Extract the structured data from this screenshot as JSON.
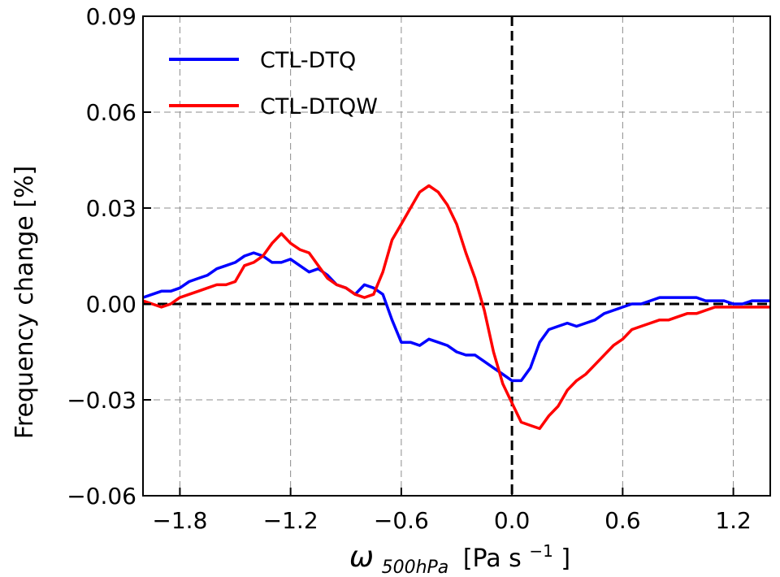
{
  "chart_data": {
    "type": "line",
    "xlabel": "ω500hPa [Pa s−1]",
    "xlabel_parts": {
      "symbol": "ω",
      "subscript": "500hPa",
      "unit_prefix": "[Pa s",
      "unit_exponent": "−1",
      "unit_suffix": "]"
    },
    "ylabel": "Frequency change [%]",
    "xlim": [
      -2.0,
      1.4
    ],
    "ylim": [
      -0.06,
      0.09
    ],
    "xticks": [
      -1.8,
      -1.2,
      -0.6,
      0.0,
      0.6,
      1.2
    ],
    "xtick_labels": [
      "−1.8",
      "−1.2",
      "−0.6",
      "0.0",
      "0.6",
      "1.2"
    ],
    "yticks": [
      -0.06,
      -0.03,
      0.0,
      0.03,
      0.06,
      0.09
    ],
    "ytick_labels": [
      "−0.06",
      "−0.03",
      "0.00",
      "0.03",
      "0.06",
      "0.09"
    ],
    "grid": true,
    "grid_style": "dashed",
    "zero_lines": true,
    "legend_position": "top-left",
    "series": [
      {
        "name": "CTL-DTQ",
        "color": "#0000ff",
        "x": [
          -2.0,
          -1.95,
          -1.9,
          -1.85,
          -1.8,
          -1.75,
          -1.7,
          -1.65,
          -1.6,
          -1.55,
          -1.5,
          -1.45,
          -1.4,
          -1.35,
          -1.3,
          -1.25,
          -1.2,
          -1.15,
          -1.1,
          -1.05,
          -1.0,
          -0.95,
          -0.9,
          -0.85,
          -0.8,
          -0.75,
          -0.7,
          -0.65,
          -0.6,
          -0.55,
          -0.5,
          -0.45,
          -0.4,
          -0.35,
          -0.3,
          -0.25,
          -0.2,
          -0.15,
          -0.1,
          -0.05,
          0.0,
          0.05,
          0.1,
          0.15,
          0.2,
          0.25,
          0.3,
          0.35,
          0.4,
          0.45,
          0.5,
          0.55,
          0.6,
          0.65,
          0.7,
          0.75,
          0.8,
          0.85,
          0.9,
          0.95,
          1.0,
          1.05,
          1.1,
          1.15,
          1.2,
          1.25,
          1.3,
          1.35,
          1.4
        ],
        "y": [
          0.002,
          0.003,
          0.004,
          0.004,
          0.005,
          0.007,
          0.008,
          0.009,
          0.011,
          0.012,
          0.013,
          0.015,
          0.016,
          0.015,
          0.013,
          0.013,
          0.014,
          0.012,
          0.01,
          0.011,
          0.009,
          0.006,
          0.005,
          0.003,
          0.006,
          0.005,
          0.003,
          -0.005,
          -0.012,
          -0.012,
          -0.013,
          -0.011,
          -0.012,
          -0.013,
          -0.015,
          -0.016,
          -0.016,
          -0.018,
          -0.02,
          -0.022,
          -0.024,
          -0.024,
          -0.02,
          -0.012,
          -0.008,
          -0.007,
          -0.006,
          -0.007,
          -0.006,
          -0.005,
          -0.003,
          -0.002,
          -0.001,
          0.0,
          0.0,
          0.001,
          0.002,
          0.002,
          0.002,
          0.002,
          0.002,
          0.001,
          0.001,
          0.001,
          0.0,
          0.0,
          0.001,
          0.001,
          0.001
        ]
      },
      {
        "name": "CTL-DTQW",
        "color": "#ff0000",
        "x": [
          -2.0,
          -1.95,
          -1.9,
          -1.85,
          -1.8,
          -1.75,
          -1.7,
          -1.65,
          -1.6,
          -1.55,
          -1.5,
          -1.45,
          -1.4,
          -1.35,
          -1.3,
          -1.25,
          -1.2,
          -1.15,
          -1.1,
          -1.05,
          -1.0,
          -0.95,
          -0.9,
          -0.85,
          -0.8,
          -0.75,
          -0.7,
          -0.65,
          -0.6,
          -0.55,
          -0.5,
          -0.45,
          -0.4,
          -0.35,
          -0.3,
          -0.25,
          -0.2,
          -0.15,
          -0.1,
          -0.05,
          0.0,
          0.05,
          0.1,
          0.15,
          0.2,
          0.25,
          0.3,
          0.35,
          0.4,
          0.45,
          0.5,
          0.55,
          0.6,
          0.65,
          0.7,
          0.75,
          0.8,
          0.85,
          0.9,
          0.95,
          1.0,
          1.05,
          1.1,
          1.15,
          1.2,
          1.25,
          1.3,
          1.35,
          1.4
        ],
        "y": [
          0.001,
          0.0,
          -0.001,
          0.0,
          0.002,
          0.003,
          0.004,
          0.005,
          0.006,
          0.006,
          0.007,
          0.012,
          0.013,
          0.015,
          0.019,
          0.022,
          0.019,
          0.017,
          0.016,
          0.012,
          0.008,
          0.006,
          0.005,
          0.003,
          0.002,
          0.003,
          0.01,
          0.02,
          0.025,
          0.03,
          0.035,
          0.037,
          0.035,
          0.031,
          0.025,
          0.016,
          0.008,
          -0.002,
          -0.015,
          -0.025,
          -0.031,
          -0.037,
          -0.038,
          -0.039,
          -0.035,
          -0.032,
          -0.027,
          -0.024,
          -0.022,
          -0.019,
          -0.016,
          -0.013,
          -0.011,
          -0.008,
          -0.007,
          -0.006,
          -0.005,
          -0.005,
          -0.004,
          -0.003,
          -0.003,
          -0.002,
          -0.001,
          -0.001,
          -0.001,
          -0.001,
          -0.001,
          -0.001,
          -0.001
        ]
      }
    ]
  }
}
